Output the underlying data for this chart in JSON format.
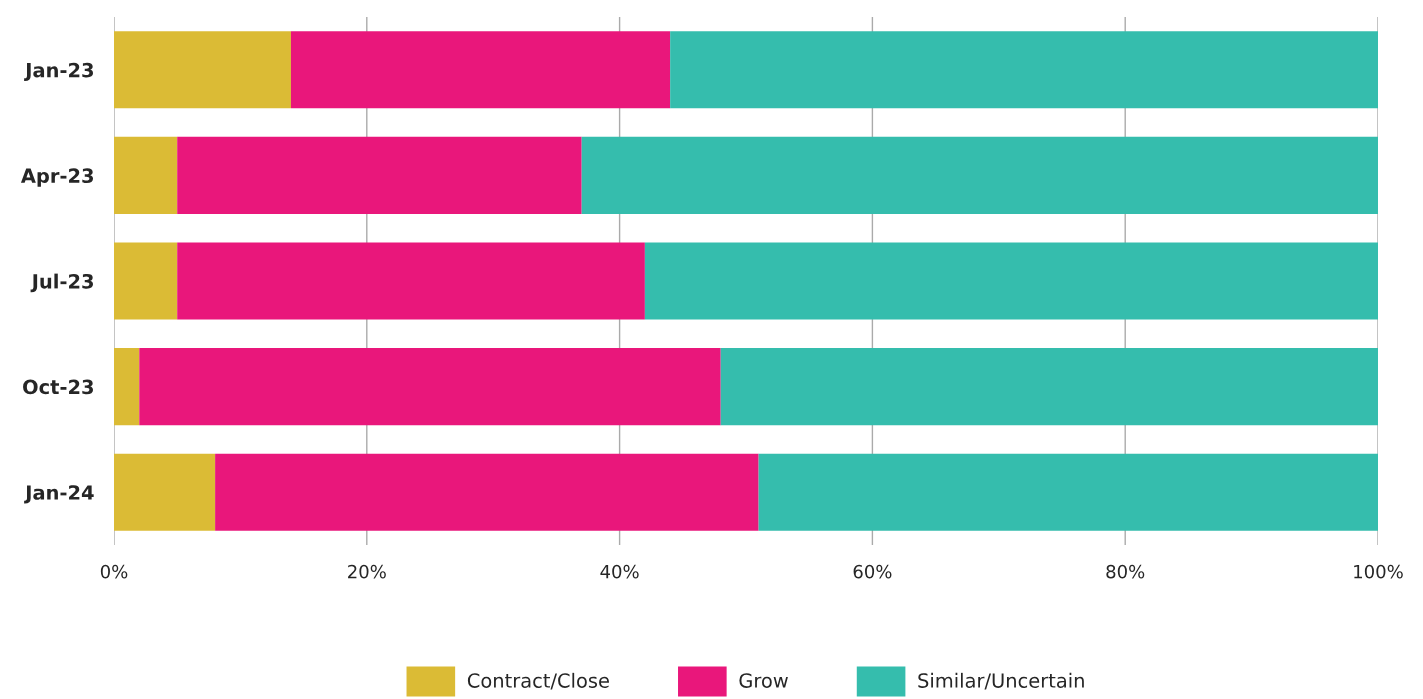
{
  "chart_data": {
    "type": "bar",
    "orientation": "horizontal",
    "stacked": true,
    "categories": [
      "Jan-23",
      "Apr-23",
      "Jul-23",
      "Oct-23",
      "Jan-24"
    ],
    "series": [
      {
        "name": "Contract/Close",
        "color": "#dbbb35",
        "values": [
          14,
          5,
          5,
          2,
          8
        ]
      },
      {
        "name": "Grow",
        "color": "#e9177b",
        "values": [
          30,
          32,
          37,
          46,
          43
        ]
      },
      {
        "name": "Similar/Uncertain",
        "color": "#35bdad",
        "values": [
          56,
          63,
          58,
          52,
          49
        ]
      }
    ],
    "xlim": [
      0,
      100
    ],
    "xticks": [
      {
        "value": 0,
        "label": "0%"
      },
      {
        "value": 20,
        "label": "20%"
      },
      {
        "value": 40,
        "label": "40%"
      },
      {
        "value": 60,
        "label": "60%"
      },
      {
        "value": 80,
        "label": "80%"
      },
      {
        "value": 100,
        "label": "100%"
      }
    ],
    "grid": "x",
    "legend": "bottom"
  }
}
